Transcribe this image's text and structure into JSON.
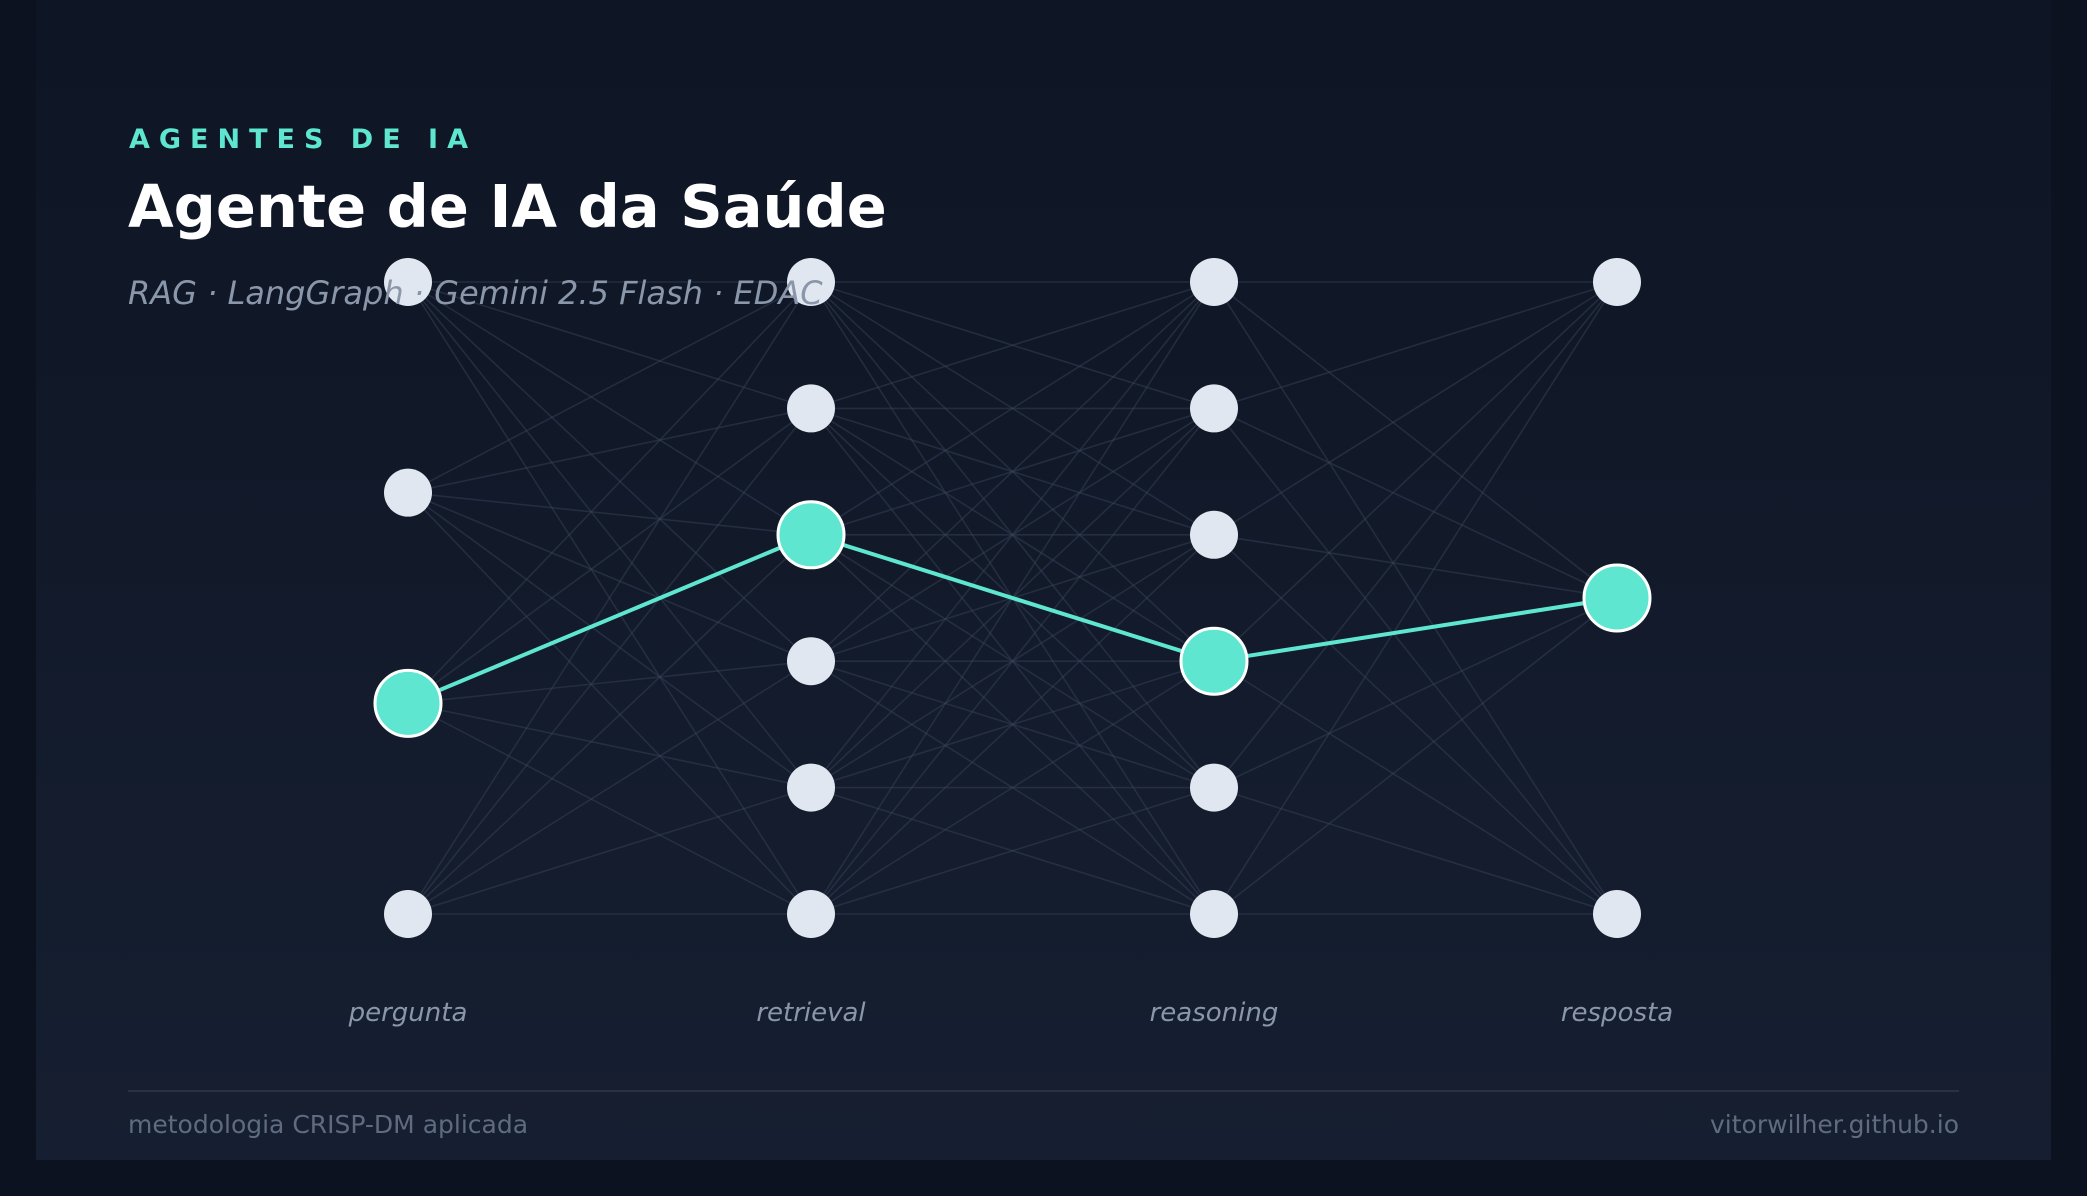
{
  "header": {
    "eyebrow": "AGENTES DE IA",
    "title": "Agente de IA da Saúde",
    "subtitle": "RAG · LangGraph · Gemini 2.5 Flash · EDAC"
  },
  "diagram": {
    "colors": {
      "background": "#0c1220",
      "node": "#e1e7f0",
      "highlight": "#5ee6d1",
      "edge": "#3a465c"
    },
    "stages": [
      {
        "label": "pergunta",
        "nodes": 4,
        "active": 2
      },
      {
        "label": "retrieval",
        "nodes": 6,
        "active": 2
      },
      {
        "label": "reasoning",
        "nodes": 6,
        "active": 3
      },
      {
        "label": "resposta",
        "nodes": 3,
        "active": 1
      }
    ]
  },
  "footer": {
    "left": "metodologia CRISP-DM aplicada",
    "right": "vitorwilher.github.io"
  }
}
